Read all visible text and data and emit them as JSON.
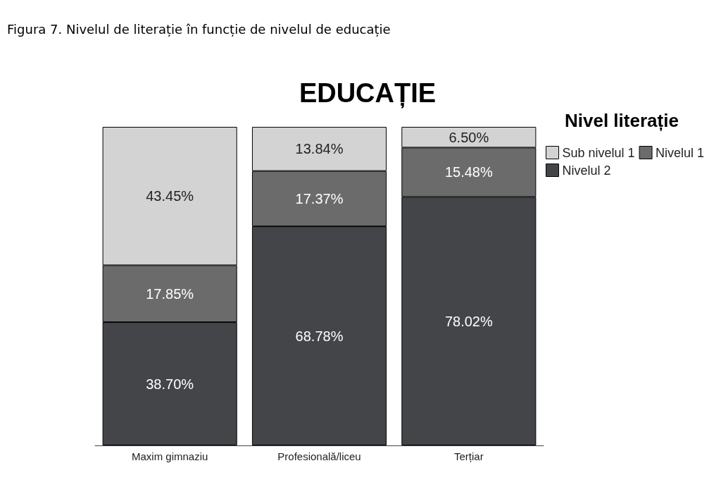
{
  "chart_data": {
    "type": "bar",
    "title": "EDUCAȚIE",
    "annotations": [
      "Figura 7. Nivelul de literație în funcție de nivelul de educație"
    ],
    "legend_title": "Nivel literație",
    "legend": "right",
    "stacked": true,
    "categories": [
      "Maxim gimnaziu",
      "Profesională/liceu",
      "Terțiar"
    ],
    "series": [
      {
        "name": "Nivelul 2",
        "color": "#434548",
        "values": [
          38.7,
          68.78,
          78.02
        ],
        "value_labels": [
          "38.70%",
          "68.78%",
          "78.02%"
        ]
      },
      {
        "name": "Nivelul 1",
        "color": "#6b6b6b",
        "values": [
          17.85,
          17.37,
          15.48
        ],
        "value_labels": [
          "17.85%",
          "17.37%",
          "15.48%"
        ]
      },
      {
        "name": "Sub nivelul 1",
        "color": "#d3d3d3",
        "values": [
          43.45,
          13.84,
          6.5
        ],
        "value_labels": [
          "43.45%",
          "13.84%",
          "6.50%"
        ]
      }
    ]
  }
}
